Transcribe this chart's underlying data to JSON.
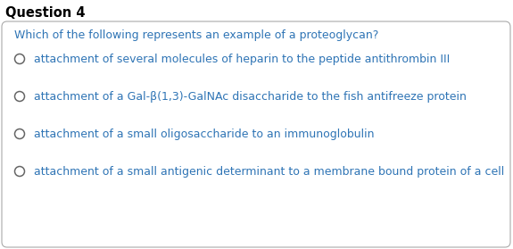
{
  "title": "Question 4",
  "title_fontsize": 10.5,
  "title_bold": true,
  "title_color": "#000000",
  "question": "Which of the following represents an example of a proteoglycan?",
  "question_color": "#2E74B5",
  "question_fontsize": 9.0,
  "options": [
    "attachment of several molecules of heparin to the peptide antithrombin III",
    "attachment of a Gal-β(1,3)-GalNAc disaccharide to the fish antifreeze protein",
    "attachment of a small oligosaccharide to an immunoglobulin",
    "attachment of a small antigenic determinant to a membrane bound protein of a cell"
  ],
  "option_color": "#2E74B5",
  "option_fontsize": 9.0,
  "background_color": "#ffffff",
  "border_color": "#aaaaaa",
  "radio_color": "#666666",
  "fig_width": 5.75,
  "fig_height": 2.79,
  "dpi": 100
}
